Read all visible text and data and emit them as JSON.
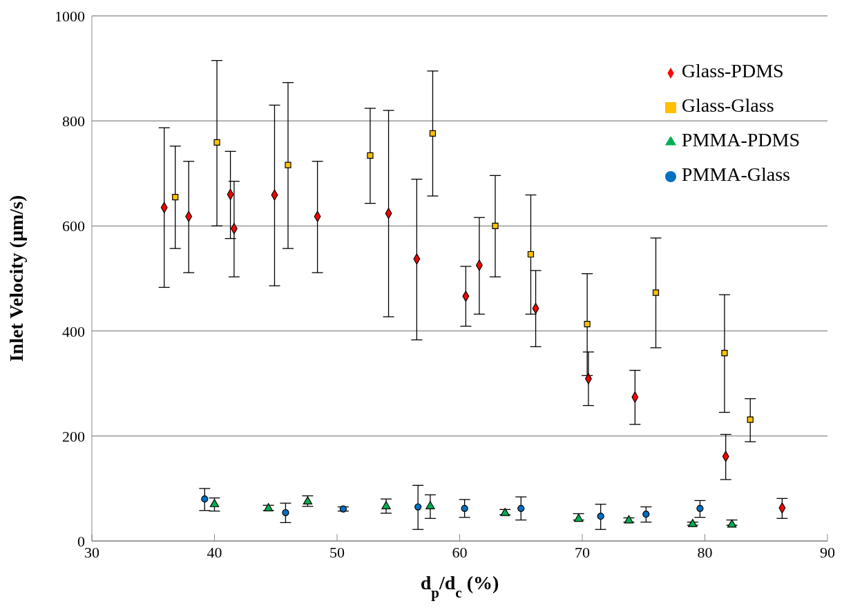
{
  "chart_data": {
    "type": "scatter",
    "xlabel": "d$_{p}$/d$_{c}$ (%)",
    "ylabel": "Inlet Velocity (µm/s)",
    "xlim": [
      30,
      90
    ],
    "xticks": [
      30,
      40,
      50,
      60,
      70,
      80,
      90
    ],
    "ylim": [
      0,
      1000
    ],
    "yticks": [
      0,
      200,
      400,
      600,
      800,
      1000
    ],
    "grid": "y",
    "legend": "top right",
    "series": [
      {
        "name": "Glass-PDMS",
        "color": "#ff0000",
        "marker": "diamond",
        "x": [
          35.9,
          37.9,
          41.3,
          41.6,
          44.9,
          48.4,
          54.2,
          56.5,
          60.5,
          61.6,
          66.2,
          70.5,
          74.3,
          81.7,
          86.3
        ],
        "values": [
          635,
          618,
          660,
          595,
          659,
          618,
          624,
          537,
          466,
          525,
          443,
          309,
          274,
          161,
          63
        ],
        "errors": [
          [
            483,
            787
          ],
          [
            511,
            723
          ],
          [
            576,
            742
          ],
          [
            503,
            685
          ],
          [
            486,
            830
          ],
          [
            511,
            723
          ],
          [
            427,
            820
          ],
          [
            383,
            689
          ],
          [
            409,
            523
          ],
          [
            432,
            616
          ],
          [
            370,
            515
          ],
          [
            258,
            360
          ],
          [
            222,
            325
          ],
          [
            117,
            203
          ],
          [
            43,
            81
          ]
        ]
      },
      {
        "name": "Glass-Glass",
        "color": "#ffc000",
        "marker": "square",
        "x": [
          36.8,
          40.2,
          46.0,
          52.7,
          57.8,
          62.9,
          65.8,
          70.4,
          76.0,
          81.6,
          83.7
        ],
        "values": [
          655,
          759,
          716,
          734,
          776,
          600,
          546,
          413,
          473,
          358,
          231
        ],
        "errors": [
          [
            557,
            752
          ],
          [
            600,
            915
          ],
          [
            557,
            873
          ],
          [
            643,
            824
          ],
          [
            657,
            895
          ],
          [
            503,
            696
          ],
          [
            432,
            659
          ],
          [
            315,
            509
          ],
          [
            368,
            577
          ],
          [
            245,
            469
          ],
          [
            189,
            271
          ]
        ]
      },
      {
        "name": "PMMA-PDMS",
        "color": "#00b050",
        "marker": "triangle",
        "x": [
          40.0,
          44.4,
          47.6,
          54.0,
          57.6,
          63.7,
          69.7,
          73.8,
          79.0,
          82.2
        ],
        "values": [
          70,
          62,
          75,
          66,
          66,
          53,
          42,
          39,
          32,
          31
        ],
        "errors": [
          [
            57,
            82
          ],
          [
            58,
            68
          ],
          [
            66,
            86
          ],
          [
            53,
            80
          ],
          [
            43,
            88
          ],
          [
            50,
            60
          ],
          [
            40,
            52
          ],
          [
            36,
            44
          ],
          [
            30,
            36
          ],
          [
            30,
            40
          ]
        ]
      },
      {
        "name": "PMMA-Glass",
        "color": "#0070c0",
        "marker": "circle",
        "x": [
          39.2,
          45.8,
          50.5,
          56.6,
          60.4,
          65.0,
          71.5,
          75.2,
          79.6
        ],
        "values": [
          80,
          54,
          61,
          65,
          62,
          62,
          47,
          51,
          62
        ],
        "errors": [
          [
            58,
            100
          ],
          [
            35,
            72
          ],
          [
            57,
            65
          ],
          [
            22,
            106
          ],
          [
            45,
            79
          ],
          [
            40,
            84
          ],
          [
            22,
            70
          ],
          [
            36,
            65
          ],
          [
            45,
            77
          ]
        ]
      }
    ]
  }
}
